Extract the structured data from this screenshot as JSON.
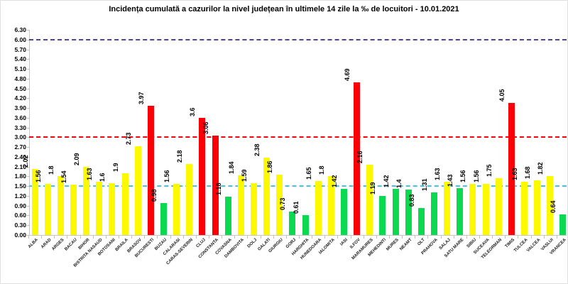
{
  "title": "Incidența cumulată a cazurilor la nivel județean în ultimele 14 zile la ‰ de locuitori - 10.01.2021",
  "chart_data": {
    "type": "bar",
    "title": "Incidența cumulată a cazurilor la nivel județean în ultimele 14 zile la ‰ de locuitori - 10.01.2021",
    "categories": [
      "ALBA",
      "ARAD",
      "ARGES",
      "BACAU",
      "BIHOR",
      "BISTRITA NASAUD",
      "BOTOSANI",
      "BRAILA",
      "BRASOV",
      "BUCURESTI",
      "BUZAU",
      "CALARASI",
      "CARAS-SEVERIN",
      "CLUJ",
      "CONSTANTA",
      "COVASNA",
      "DAMBOVITA",
      "DOLJ",
      "GALATI",
      "GIURGIU",
      "GORJ",
      "HARGHITA",
      "HUNEDOARA",
      "IALOMITA",
      "IASI",
      "ILFOV",
      "MARAMURES",
      "MEHEDINTI",
      "MURES",
      "NEAMT",
      "OLT",
      "PRAHOVA",
      "SALAJ",
      "SATU MARE",
      "SIBIU",
      "SUCEAVA",
      "TELEORMAN",
      "TIMIS",
      "TULCEA",
      "VALCEA",
      "VASLUI",
      "VRANCEA"
    ],
    "values": [
      2.02,
      1.56,
      1.8,
      1.54,
      2.09,
      1.63,
      1.6,
      1.9,
      2.73,
      3.97,
      0.98,
      1.56,
      2.18,
      3.6,
      3.06,
      1.18,
      1.84,
      1.59,
      2.38,
      1.86,
      0.73,
      0.61,
      1.65,
      1.8,
      1.42,
      4.69,
      2.16,
      1.19,
      1.42,
      1.4,
      0.83,
      1.31,
      1.63,
      1.43,
      1.56,
      1.56,
      1.75,
      4.05,
      1.63,
      1.68,
      1.82,
      0.64
    ],
    "xlabel": "",
    "ylabel": "",
    "ylim": [
      0,
      6.3
    ],
    "ytick_step": 0.3,
    "grid": false,
    "legend": false,
    "bar_color_rules": {
      "green_below": 1.5,
      "yellow_below": 3.0,
      "colors": {
        "green": "#0bda51",
        "yellow": "#fdf900",
        "red": "#fb0007"
      }
    },
    "reference_lines": [
      {
        "value": 6.0,
        "color": "#514293",
        "style": "dashed"
      },
      {
        "value": 3.0,
        "color": "#fb0007",
        "style": "dashed"
      },
      {
        "value": 1.5,
        "color": "#45c2e5",
        "style": "dashed"
      }
    ]
  }
}
